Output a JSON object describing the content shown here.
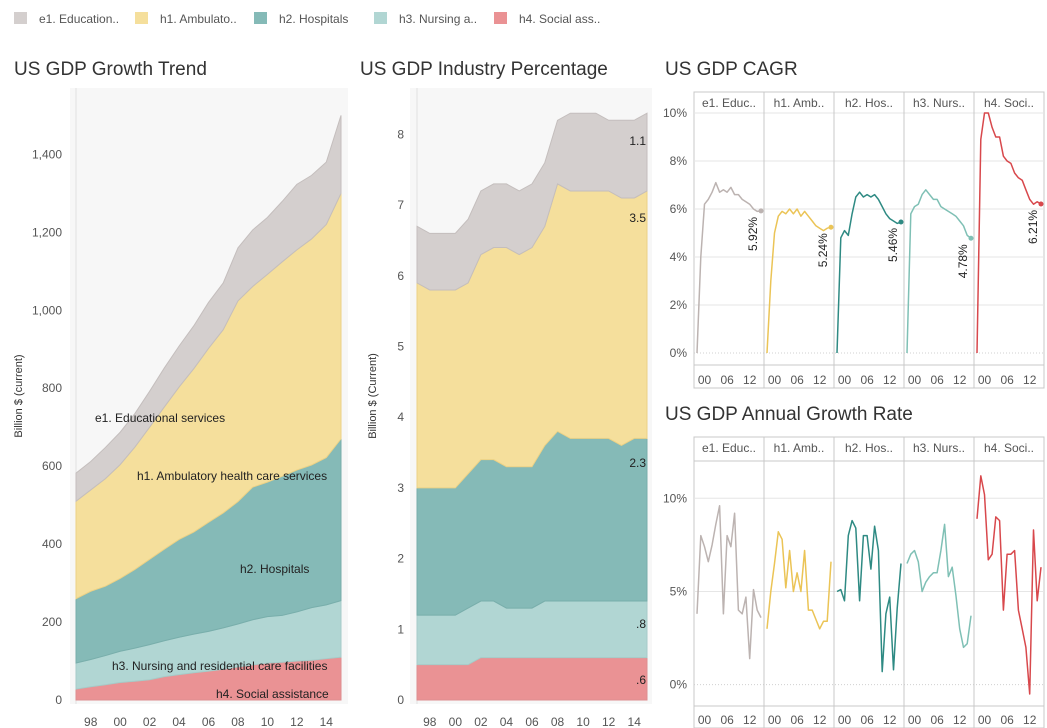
{
  "legend": [
    {
      "label": "e1. Education..",
      "color": "#d4cfce"
    },
    {
      "label": "h1. Ambulato..",
      "color": "#f5df9c"
    },
    {
      "label": "h2. Hospitals",
      "color": "#85bab7"
    },
    {
      "label": "h3. Nursing a..",
      "color": "#b1d6d3"
    },
    {
      "label": "h4. Social ass..",
      "color": "#ea9294"
    }
  ],
  "facet_labels": [
    "e1. Educ..",
    "h1. Amb..",
    "h2. Hos..",
    "h3. Nurs..",
    "h4. Soci.."
  ],
  "line_colors": [
    "#bcb3b1",
    "#ebc456",
    "#2e8a83",
    "#7fc0b5",
    "#d8484c"
  ],
  "chart_data": [
    {
      "id": "trend",
      "type": "area",
      "stacked": true,
      "title": "US GDP Growth Trend",
      "ylabel": "Billion $ (current)",
      "xlabel": "",
      "ylim": [
        0,
        1560
      ],
      "x": [
        1997,
        1998,
        1999,
        2000,
        2001,
        2002,
        2003,
        2004,
        2005,
        2006,
        2007,
        2008,
        2009,
        2010,
        2011,
        2012,
        2013,
        2014,
        2015
      ],
      "x_ticks": [
        "98",
        "00",
        "02",
        "04",
        "06",
        "08",
        "10",
        "12",
        "14"
      ],
      "y_ticks": [
        "0",
        "200",
        "400",
        "600",
        "800",
        "1,000",
        "1,200",
        "1,400"
      ],
      "series": [
        {
          "name": "h4. Social assistance",
          "values": [
            28,
            34,
            39,
            45,
            48,
            52,
            60,
            65,
            70,
            74,
            79,
            85,
            90,
            95,
            97,
            100,
            102,
            106,
            110
          ]
        },
        {
          "name": "h3. Nursing and residential care facilities",
          "values": [
            67,
            70,
            75,
            80,
            85,
            90,
            92,
            96,
            99,
            102,
            106,
            110,
            116,
            119,
            120,
            126,
            135,
            138,
            145
          ]
        },
        {
          "name": "h2. Hospitals",
          "values": [
            165,
            175,
            178,
            187,
            202,
            219,
            235,
            251,
            262,
            280,
            295,
            314,
            340,
            345,
            357,
            364,
            366,
            378,
            415
          ]
        },
        {
          "name": "h1. Ambulatory health care services",
          "values": [
            250,
            260,
            276,
            292,
            314,
            339,
            365,
            391,
            419,
            446,
            470,
            515,
            515,
            533,
            550,
            565,
            580,
            598,
            630
          ]
        },
        {
          "name": "e1. Educational services",
          "values": [
            72,
            73,
            80,
            83,
            86,
            92,
            100,
            105,
            110,
            118,
            120,
            136,
            145,
            146,
            155,
            168,
            163,
            160,
            200
          ]
        }
      ],
      "annotations": [
        "e1. Educational services",
        "h1.  Ambulatory health care services",
        "h2.  Hospitals",
        "h3.  Nursing and residential care facilities",
        "h4.  Social assistance"
      ]
    },
    {
      "id": "percentage",
      "type": "area",
      "stacked": true,
      "title": "US GDP Industry Percentage",
      "ylabel": "Billion $ (Current)",
      "xlabel": "",
      "ylim": [
        0,
        8.6
      ],
      "x": [
        1997,
        1998,
        1999,
        2000,
        2001,
        2002,
        2003,
        2004,
        2005,
        2006,
        2007,
        2008,
        2009,
        2010,
        2011,
        2012,
        2013,
        2014,
        2015
      ],
      "x_ticks": [
        "98",
        "00",
        "02",
        "04",
        "06",
        "08",
        "10",
        "12",
        "14"
      ],
      "y_ticks": [
        "0",
        "1",
        "2",
        "3",
        "4",
        "5",
        "6",
        "7",
        "8"
      ],
      "series": [
        {
          "name": "h4. Social assistance",
          "values": [
            0.5,
            0.5,
            0.5,
            0.5,
            0.5,
            0.6,
            0.6,
            0.6,
            0.6,
            0.6,
            0.6,
            0.6,
            0.6,
            0.6,
            0.6,
            0.6,
            0.6,
            0.6,
            0.6
          ]
        },
        {
          "name": "h3. Nursing and residential care facilities",
          "values": [
            0.7,
            0.7,
            0.7,
            0.7,
            0.8,
            0.8,
            0.8,
            0.7,
            0.7,
            0.7,
            0.8,
            0.8,
            0.8,
            0.8,
            0.8,
            0.8,
            0.8,
            0.8,
            0.8
          ]
        },
        {
          "name": "h2. Hospitals",
          "values": [
            1.8,
            1.8,
            1.8,
            1.8,
            1.9,
            2.0,
            2.0,
            2.0,
            2.0,
            2.0,
            2.2,
            2.4,
            2.3,
            2.3,
            2.3,
            2.3,
            2.2,
            2.3,
            2.3
          ]
        },
        {
          "name": "h1. Ambulatory health care services",
          "values": [
            2.9,
            2.8,
            2.8,
            2.8,
            2.7,
            2.9,
            3.0,
            3.1,
            3.0,
            3.1,
            3.1,
            3.5,
            3.5,
            3.5,
            3.5,
            3.5,
            3.5,
            3.4,
            3.5
          ]
        },
        {
          "name": "e1. Educational services",
          "values": [
            0.8,
            0.8,
            0.8,
            0.8,
            0.9,
            0.9,
            0.9,
            0.9,
            0.9,
            0.9,
            0.9,
            0.9,
            1.1,
            1.1,
            1.1,
            1.0,
            1.1,
            1.1,
            1.1
          ]
        }
      ],
      "end_labels": [
        "1.1",
        "3.5",
        "2.3",
        ".8",
        ".6"
      ]
    },
    {
      "id": "cagr",
      "type": "line",
      "title": "US GDP CAGR",
      "xlabel": "",
      "ylabel": "",
      "ylim": [
        0,
        0.1
      ],
      "x": [
        1998,
        1999,
        2000,
        2001,
        2002,
        2003,
        2004,
        2005,
        2006,
        2007,
        2008,
        2009,
        2010,
        2011,
        2012,
        2013,
        2014,
        2015
      ],
      "x_ticks": [
        "00",
        "06",
        "12"
      ],
      "y_ticks": [
        "0%",
        "2%",
        "4%",
        "6%",
        "8%",
        "10%"
      ],
      "series": [
        {
          "name": "e1. Educ..",
          "values": [
            0.0,
            0.04,
            0.062,
            0.064,
            0.067,
            0.071,
            0.067,
            0.068,
            0.067,
            0.069,
            0.066,
            0.066,
            0.064,
            0.063,
            0.062,
            0.06,
            0.059,
            0.0592
          ],
          "end_label": "5.92%"
        },
        {
          "name": "h1. Amb..",
          "values": [
            0.0,
            0.03,
            0.05,
            0.057,
            0.059,
            0.058,
            0.06,
            0.058,
            0.06,
            0.057,
            0.059,
            0.057,
            0.055,
            0.053,
            0.052,
            0.051,
            0.052,
            0.0524
          ],
          "end_label": "5.24%"
        },
        {
          "name": "h2. Hos..",
          "values": [
            0.0,
            0.048,
            0.051,
            0.049,
            0.058,
            0.065,
            0.067,
            0.065,
            0.066,
            0.065,
            0.066,
            0.064,
            0.061,
            0.058,
            0.056,
            0.055,
            0.054,
            0.0546
          ],
          "end_label": "5.46%"
        },
        {
          "name": "h3. Nurs..",
          "values": [
            0.0,
            0.058,
            0.061,
            0.062,
            0.066,
            0.068,
            0.066,
            0.064,
            0.064,
            0.061,
            0.06,
            0.059,
            0.058,
            0.057,
            0.055,
            0.053,
            0.049,
            0.0478
          ],
          "end_label": "4.78%"
        },
        {
          "name": "h4. Soci..",
          "values": [
            0.0,
            0.089,
            0.1,
            0.1,
            0.094,
            0.09,
            0.09,
            0.082,
            0.08,
            0.079,
            0.075,
            0.073,
            0.072,
            0.068,
            0.064,
            0.062,
            0.063,
            0.0621
          ],
          "end_label": "6.21%"
        }
      ]
    },
    {
      "id": "annual",
      "type": "line",
      "title": "US GDP Annual Growth Rate",
      "xlabel": "",
      "ylabel": "",
      "ylim": [
        -0.005,
        0.12
      ],
      "x": [
        1998,
        1999,
        2000,
        2001,
        2002,
        2003,
        2004,
        2005,
        2006,
        2007,
        2008,
        2009,
        2010,
        2011,
        2012,
        2013,
        2014,
        2015
      ],
      "x_ticks": [
        "00",
        "06",
        "12"
      ],
      "y_ticks": [
        "0%",
        "5%",
        "10%"
      ],
      "series": [
        {
          "name": "e1. Educ..",
          "values": [
            0.038,
            0.08,
            0.074,
            0.066,
            0.075,
            0.086,
            0.096,
            0.038,
            0.08,
            0.074,
            0.092,
            0.04,
            0.038,
            0.047,
            0.014,
            0.051,
            0.04,
            0.036
          ]
        },
        {
          "name": "h1. Amb..",
          "values": [
            0.03,
            0.05,
            0.065,
            0.082,
            0.078,
            0.052,
            0.072,
            0.05,
            0.06,
            0.05,
            0.072,
            0.04,
            0.04,
            0.035,
            0.03,
            0.034,
            0.034,
            0.066
          ]
        },
        {
          "name": "h2. Hos..",
          "values": [
            0.05,
            0.051,
            0.045,
            0.08,
            0.088,
            0.084,
            0.045,
            0.08,
            0.08,
            0.062,
            0.085,
            0.072,
            0.007,
            0.038,
            0.047,
            0.008,
            0.041,
            0.065
          ]
        },
        {
          "name": "h3. Nurs..",
          "values": [
            0.065,
            0.07,
            0.072,
            0.066,
            0.05,
            0.055,
            0.058,
            0.06,
            0.06,
            0.072,
            0.086,
            0.058,
            0.063,
            0.048,
            0.03,
            0.02,
            0.022,
            0.037
          ]
        },
        {
          "name": "h4. Soci..",
          "values": [
            0.089,
            0.112,
            0.102,
            0.067,
            0.07,
            0.09,
            0.088,
            0.04,
            0.07,
            0.07,
            0.072,
            0.04,
            0.03,
            0.02,
            -0.005,
            0.083,
            0.045,
            0.063
          ]
        }
      ]
    }
  ]
}
